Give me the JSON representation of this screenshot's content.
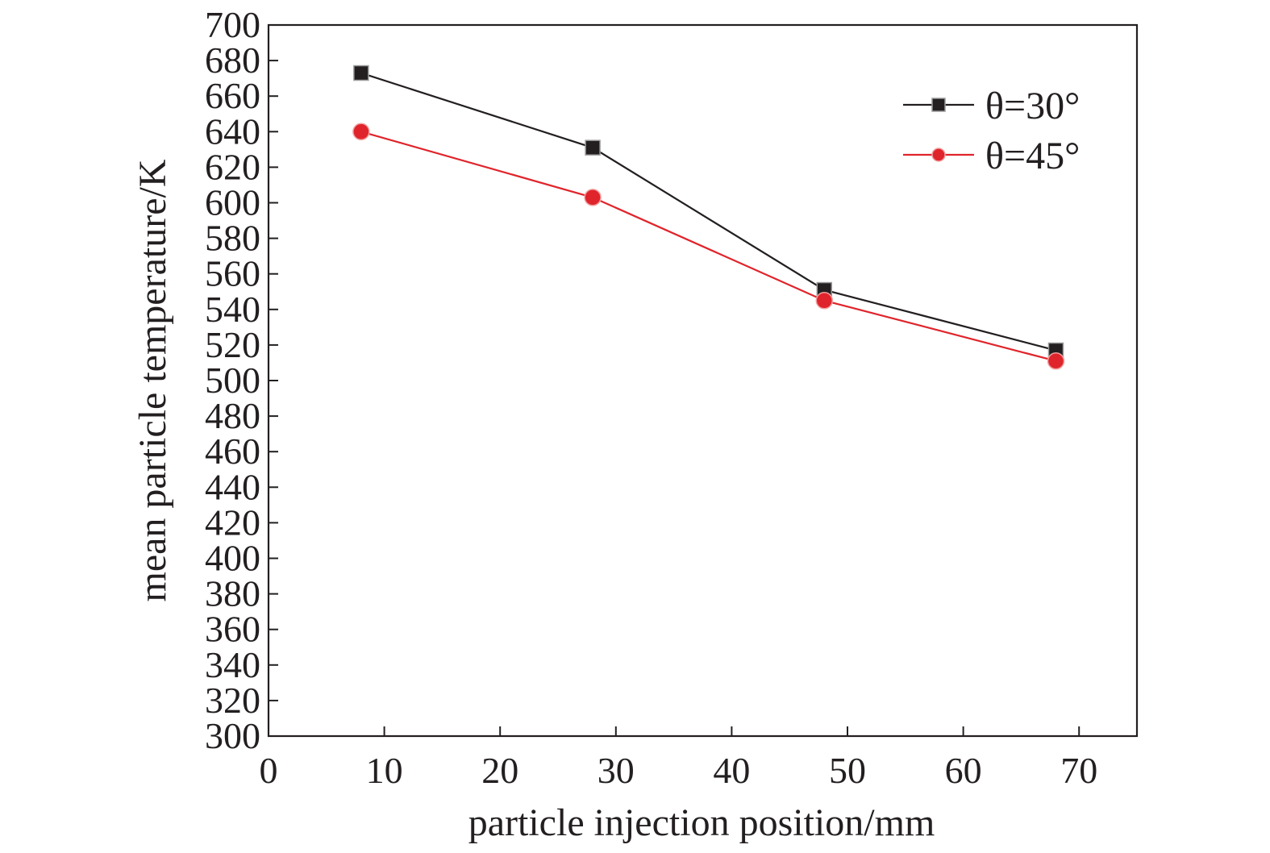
{
  "chart_data": {
    "type": "line",
    "title": "",
    "xlabel": "particle injection position/mm",
    "ylabel": "mean particle temperature/K",
    "xlim": [
      0,
      75
    ],
    "ylim": [
      300,
      700
    ],
    "x_ticks": [
      0,
      10,
      20,
      30,
      40,
      50,
      60,
      70
    ],
    "y_ticks": [
      300,
      320,
      340,
      360,
      380,
      400,
      420,
      440,
      460,
      480,
      500,
      520,
      540,
      560,
      580,
      600,
      620,
      640,
      660,
      680,
      700
    ],
    "x_tick_labels": [
      "0",
      "10",
      "20",
      "30",
      "40",
      "50",
      "60",
      "70"
    ],
    "y_tick_labels": [
      "300",
      "320",
      "340",
      "360",
      "380",
      "400",
      "420",
      "440",
      "460",
      "480",
      "500",
      "520",
      "540",
      "560",
      "580",
      "600",
      "620",
      "640",
      "660",
      "680",
      "700"
    ],
    "grid": false,
    "legend_position": "top-right",
    "series": [
      {
        "name": "θ=30°",
        "marker": "square",
        "color": "#231f20",
        "x": [
          8,
          28,
          48,
          68
        ],
        "y": [
          673,
          631,
          551,
          517
        ]
      },
      {
        "name": "θ=45°",
        "marker": "circle",
        "color": "#e0242b",
        "x": [
          8,
          28,
          48,
          68
        ],
        "y": [
          640,
          603,
          545,
          511
        ]
      }
    ]
  }
}
